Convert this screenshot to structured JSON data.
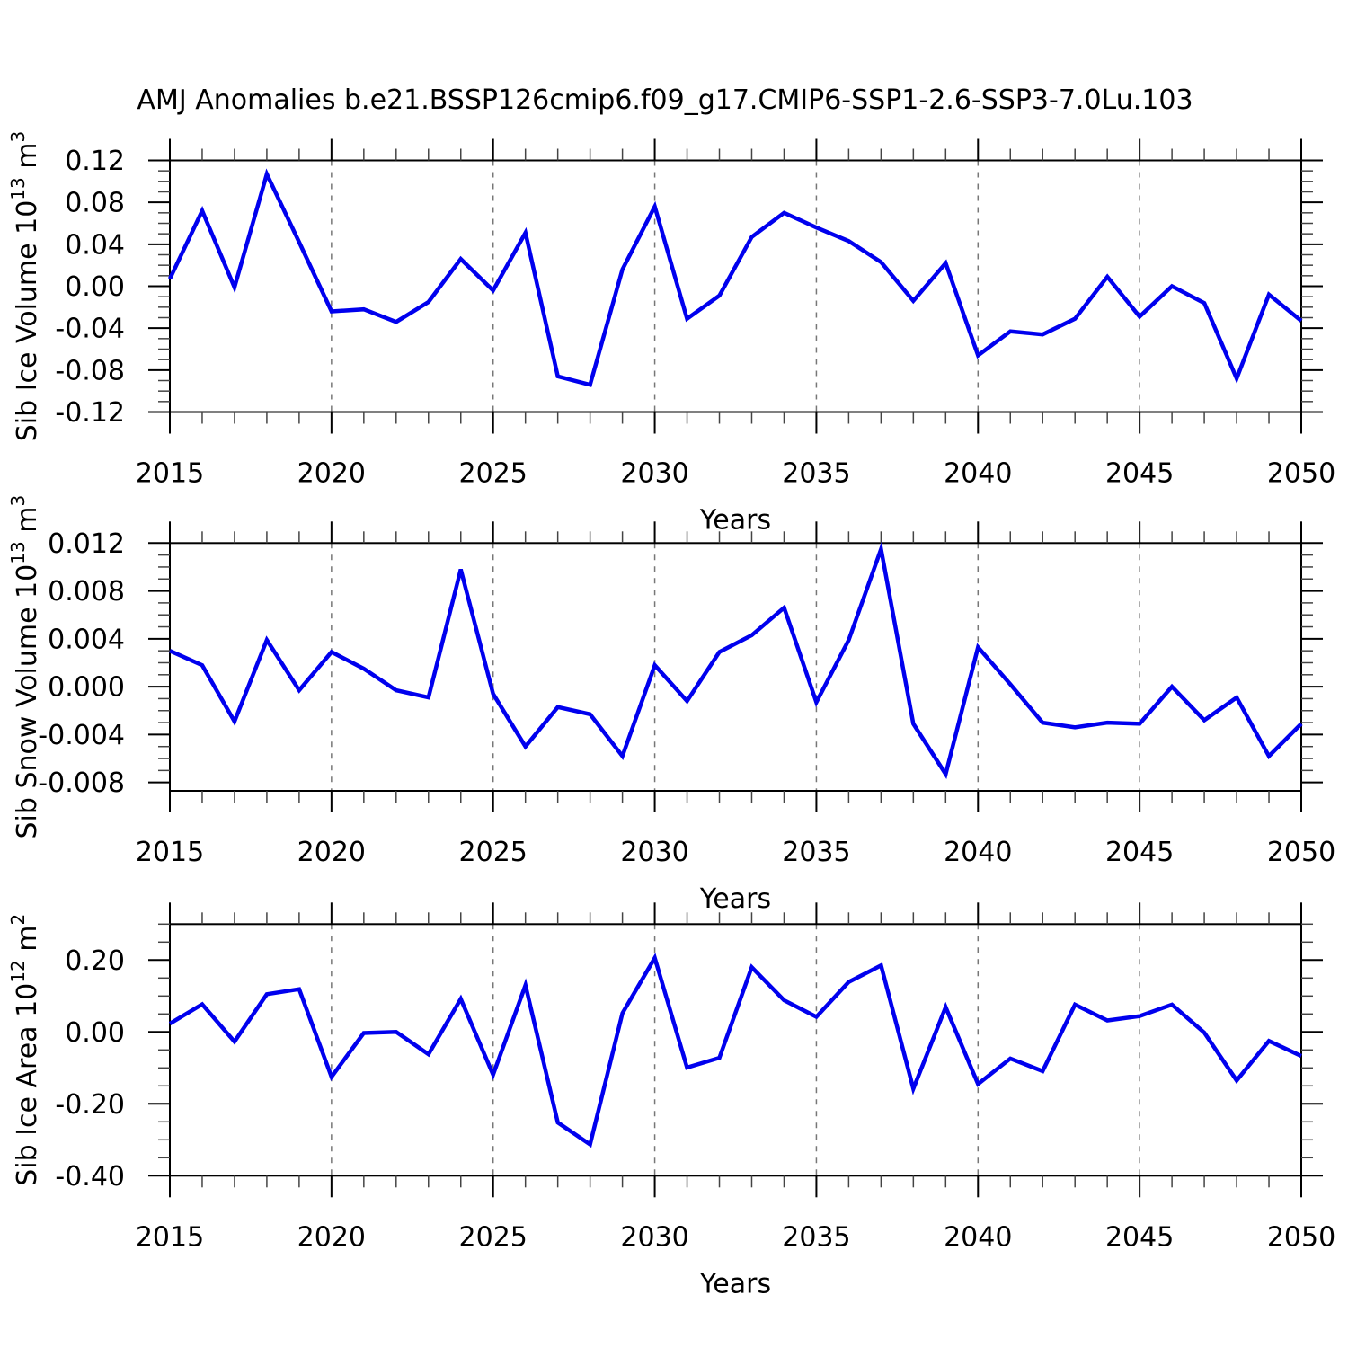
{
  "title": "AMJ Anomalies b.e21.BSSP126cmip6.f09_g17.CMIP6-SSP1-2.6-SSP3-7.0Lu.103",
  "years": [
    2015,
    2016,
    2017,
    2018,
    2019,
    2020,
    2021,
    2022,
    2023,
    2024,
    2025,
    2026,
    2027,
    2028,
    2029,
    2030,
    2031,
    2032,
    2033,
    2034,
    2035,
    2036,
    2037,
    2038,
    2039,
    2040,
    2041,
    2042,
    2043,
    2044,
    2045,
    2046,
    2047,
    2048,
    2049,
    2050
  ],
  "x_axis": {
    "label": "Years",
    "major_tick_labels": [
      "2015",
      "2020",
      "2025",
      "2030",
      "2035",
      "2040",
      "2045",
      "2050"
    ],
    "major_tick_years": [
      2015,
      2020,
      2025,
      2030,
      2035,
      2040,
      2045,
      2050
    ],
    "minor_step_years": 1
  },
  "style": {
    "line_color": "#0000ee",
    "grid_color": "#777777",
    "frame_color": "#000000",
    "minor_tick_color": "#444444",
    "background": "#ffffff"
  },
  "chart_data": [
    {
      "type": "line",
      "name": "sib-ice-volume",
      "ylabel": "Sib Ice Volume 10^13 m^3",
      "ylabel_parts": [
        {
          "t": "Sib Ice Volume 10"
        },
        {
          "t": "13",
          "sup": true
        },
        {
          "t": " m"
        },
        {
          "t": "3",
          "sup": true
        }
      ],
      "xlabel": "Years",
      "ylim": [
        -0.12,
        0.12
      ],
      "ytick_values": [
        0.12,
        0.08,
        0.04,
        0.0,
        -0.04,
        -0.08,
        -0.12
      ],
      "ytick_labels": [
        "0.12",
        "0.08",
        "0.04",
        "0.00",
        "-0.04",
        "-0.08",
        "-0.12"
      ],
      "yminor_step": 0.01,
      "grid_years": [
        2020,
        2025,
        2030,
        2035,
        2040,
        2045
      ],
      "grid": "vertical-dashed",
      "legend": "none",
      "values": [
        0.007,
        0.072,
        -0.001,
        0.107,
        0.042,
        -0.024,
        -0.022,
        -0.034,
        -0.015,
        0.026,
        -0.004,
        0.051,
        -0.086,
        -0.094,
        0.016,
        0.076,
        -0.031,
        -0.009,
        0.047,
        0.07,
        0.056,
        0.043,
        0.023,
        -0.014,
        0.022,
        -0.066,
        -0.043,
        -0.046,
        -0.031,
        0.009,
        -0.029,
        0.0,
        -0.016,
        -0.088,
        -0.008,
        -0.033
      ]
    },
    {
      "type": "line",
      "name": "sib-snow-volume",
      "ylabel": "Sib Snow Volume 10^13 m^3",
      "ylabel_parts": [
        {
          "t": "Sib Snow Volume 10"
        },
        {
          "t": "13",
          "sup": true
        },
        {
          "t": " m"
        },
        {
          "t": "3",
          "sup": true
        }
      ],
      "xlabel": "Years",
      "ylim": [
        -0.0087,
        0.012
      ],
      "ytick_values": [
        0.012,
        0.008,
        0.004,
        0.0,
        -0.004,
        -0.008
      ],
      "ytick_labels": [
        "0.012",
        "0.008",
        "0.004",
        "0.000",
        "-0.004",
        "-0.008"
      ],
      "yminor_step": 0.001,
      "grid_years": [
        2020,
        2025,
        2030,
        2035,
        2040,
        2045
      ],
      "grid": "vertical-dashed",
      "legend": "none",
      "values": [
        0.003,
        0.0018,
        -0.0029,
        0.0039,
        -0.0003,
        0.0029,
        0.0015,
        -0.0003,
        -0.0009,
        0.0098,
        -0.0006,
        -0.005,
        -0.0017,
        -0.0023,
        -0.0058,
        0.0018,
        -0.0012,
        0.0029,
        0.0043,
        0.0066,
        -0.0013,
        0.0039,
        0.0115,
        -0.0031,
        -0.0073,
        0.0033,
        0.0002,
        -0.003,
        -0.0034,
        -0.003,
        -0.0031,
        0.0,
        -0.0028,
        -0.0009,
        -0.0058,
        -0.0031
      ]
    },
    {
      "type": "line",
      "name": "sib-ice-area",
      "ylabel": "Sib Ice Area 10^12 m^2",
      "ylabel_parts": [
        {
          "t": "Sib Ice Area 10"
        },
        {
          "t": "12",
          "sup": true
        },
        {
          "t": " m"
        },
        {
          "t": "2",
          "sup": true
        }
      ],
      "xlabel": "Years",
      "ylim": [
        -0.4,
        0.3
      ],
      "ytick_values": [
        0.2,
        0.0,
        -0.2,
        -0.4
      ],
      "ytick_labels": [
        "0.20",
        "0.00",
        "-0.20",
        "-0.40"
      ],
      "yminor_step": 0.05,
      "grid_years": [
        2020,
        2025,
        2030,
        2035,
        2040,
        2045
      ],
      "grid": "vertical-dashed",
      "legend": "none",
      "values": [
        0.023,
        0.077,
        -0.027,
        0.105,
        0.119,
        -0.125,
        -0.003,
        0.0,
        -0.062,
        0.092,
        -0.119,
        0.13,
        -0.252,
        -0.313,
        0.052,
        0.206,
        -0.099,
        -0.072,
        0.18,
        0.088,
        0.042,
        0.139,
        0.185,
        -0.158,
        0.069,
        -0.145,
        -0.074,
        -0.109,
        0.076,
        0.032,
        0.044,
        0.076,
        -0.002,
        -0.135,
        -0.025,
        -0.067
      ]
    }
  ]
}
